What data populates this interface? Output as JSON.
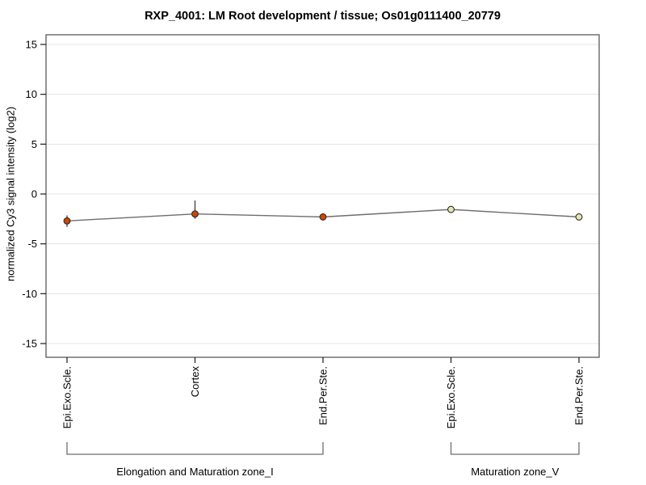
{
  "window": {
    "background": "#ffffff"
  },
  "chart_data": {
    "type": "line",
    "title": "RXP_4001: LM Root development / tissue; Os01g0111400_20779",
    "xlabel": "",
    "ylabel": "normalized Cy3 signal intensity (log2)",
    "categories": [
      "Epi.Exo.Scle.",
      "Cortex",
      "End.Per.Ste.",
      "Epi.Exo.Scle.",
      "End.Per.Ste."
    ],
    "values": [
      -2.7,
      -2.0,
      -2.3,
      -1.55,
      -2.3
    ],
    "error_up": [
      0.55,
      1.35,
      0.3,
      0.3,
      0.25
    ],
    "error_down": [
      0.6,
      0.5,
      0.3,
      0.3,
      0.25
    ],
    "groups": [
      {
        "label": "Elongation and Maturation zone_I",
        "start": 0,
        "end": 2
      },
      {
        "label": "Maturation zone_V",
        "start": 3,
        "end": 4
      }
    ],
    "yticks": [
      -15,
      -10,
      -5,
      0,
      5,
      10,
      15
    ],
    "ylim": [
      -16.4,
      16.0
    ],
    "grid": true,
    "legend": "none",
    "colors": {
      "point_fill_group1": "#c84a05",
      "point_fill_group2": "#e6e6b4",
      "point_stroke": "#2b2b2b",
      "line": "#6e6e6e",
      "errorbar": "#3c3c3c",
      "gridline": "#e4e4e4",
      "box_border": "#4d4d4d",
      "tick": "#1a1a1a",
      "text": "#000000",
      "bracket": "#6e6e6e"
    }
  }
}
